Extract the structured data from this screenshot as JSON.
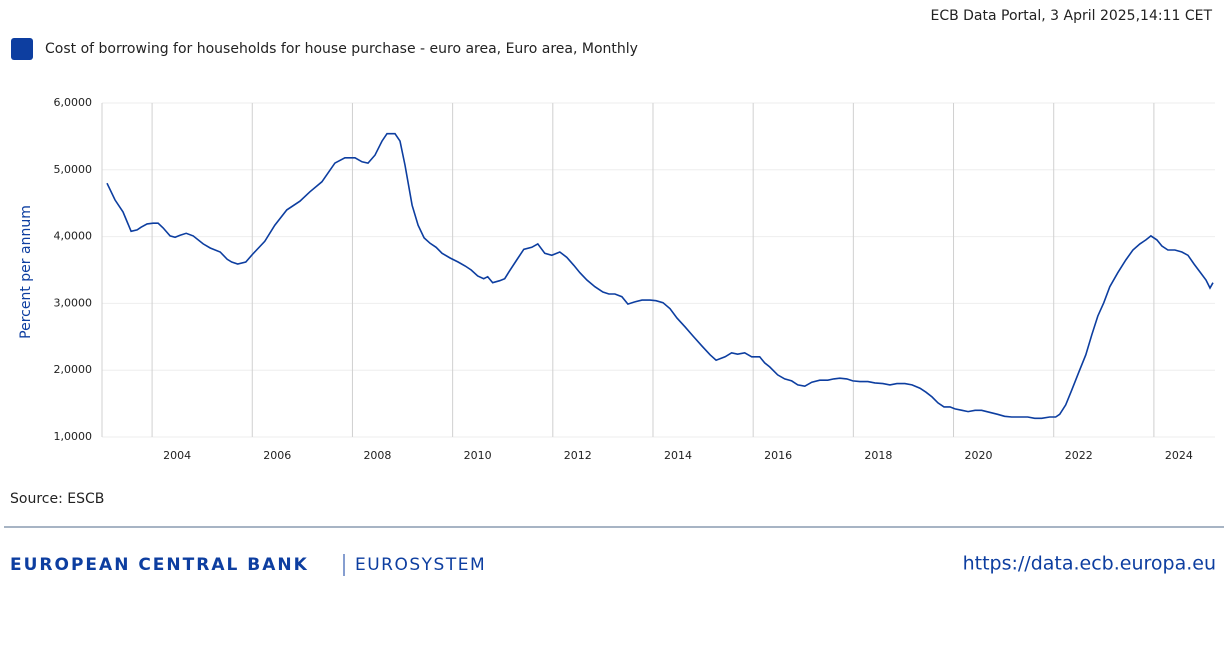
{
  "header": {
    "stamp": "ECB Data Portal, 3 April 2025,14:11 CET"
  },
  "chart_data": {
    "type": "line",
    "y_label": "Percent per annum",
    "series": [
      {
        "name": "Cost of borrowing for households for house purchase - euro area, Euro area, Monthly",
        "color": "#0d3ea0",
        "x": [
          2003.1,
          2003.26,
          2003.42,
          2003.58,
          2003.7,
          2003.78,
          2003.9,
          2004.02,
          2004.12,
          2004.22,
          2004.36,
          2004.46,
          2004.56,
          2004.68,
          2004.82,
          2005.02,
          2005.16,
          2005.36,
          2005.5,
          2005.59,
          2005.71,
          2005.87,
          2006.01,
          2006.25,
          2006.45,
          2006.69,
          2006.95,
          2007.15,
          2007.39,
          2007.65,
          2007.85,
          2008.05,
          2008.19,
          2008.31,
          2008.45,
          2008.59,
          2008.69,
          2008.85,
          2008.95,
          2009.05,
          2009.19,
          2009.31,
          2009.43,
          2009.55,
          2009.67,
          2009.79,
          2009.95,
          2010.11,
          2010.25,
          2010.37,
          2010.5,
          2010.62,
          2010.7,
          2010.8,
          2010.94,
          2011.04,
          2011.14,
          2011.28,
          2011.42,
          2011.58,
          2011.7,
          2011.84,
          2011.98,
          2012.14,
          2012.28,
          2012.42,
          2012.54,
          2012.68,
          2012.84,
          2013.0,
          2013.12,
          2013.24,
          2013.38,
          2013.5,
          2013.62,
          2013.78,
          2013.94,
          2014.06,
          2014.2,
          2014.34,
          2014.48,
          2014.64,
          2014.8,
          2014.98,
          2015.14,
          2015.26,
          2015.44,
          2015.57,
          2015.69,
          2015.83,
          2015.97,
          2016.13,
          2016.23,
          2016.33,
          2016.49,
          2016.63,
          2016.77,
          2016.89,
          2017.03,
          2017.17,
          2017.33,
          2017.49,
          2017.61,
          2017.73,
          2017.87,
          2017.99,
          2018.13,
          2018.29,
          2018.43,
          2018.59,
          2018.73,
          2018.87,
          2019.03,
          2019.17,
          2019.33,
          2019.45,
          2019.57,
          2019.69,
          2019.81,
          2019.93,
          2020.03,
          2020.17,
          2020.29,
          2020.43,
          2020.56,
          2020.72,
          2020.88,
          2021.02,
          2021.16,
          2021.32,
          2021.48,
          2021.62,
          2021.76,
          2021.92,
          2022.04,
          2022.12,
          2022.24,
          2022.36,
          2022.5,
          2022.64,
          2022.76,
          2022.88,
          2023.0,
          2023.12,
          2023.28,
          2023.44,
          2023.58,
          2023.72,
          2023.84,
          2023.94,
          2024.06,
          2024.16,
          2024.28,
          2024.42,
          2024.56,
          2024.68,
          2024.8,
          2024.92,
          2025.04,
          2025.12,
          2025.18
        ],
        "values": [
          4.8,
          4.55,
          4.37,
          4.08,
          4.1,
          4.14,
          4.19,
          4.2,
          4.2,
          4.13,
          4.01,
          3.99,
          4.02,
          4.05,
          4.01,
          3.89,
          3.83,
          3.77,
          3.66,
          3.62,
          3.59,
          3.62,
          3.74,
          3.93,
          4.17,
          4.4,
          4.53,
          4.67,
          4.82,
          5.1,
          5.18,
          5.18,
          5.12,
          5.1,
          5.22,
          5.43,
          5.54,
          5.54,
          5.43,
          5.07,
          4.47,
          4.17,
          3.98,
          3.9,
          3.84,
          3.75,
          3.68,
          3.62,
          3.56,
          3.5,
          3.41,
          3.37,
          3.4,
          3.31,
          3.34,
          3.37,
          3.49,
          3.65,
          3.81,
          3.84,
          3.89,
          3.75,
          3.72,
          3.77,
          3.69,
          3.57,
          3.46,
          3.35,
          3.25,
          3.17,
          3.14,
          3.14,
          3.1,
          2.99,
          3.02,
          3.05,
          3.05,
          3.04,
          3.01,
          2.92,
          2.78,
          2.65,
          2.51,
          2.36,
          2.23,
          2.15,
          2.2,
          2.26,
          2.24,
          2.26,
          2.2,
          2.2,
          2.11,
          2.05,
          1.93,
          1.87,
          1.84,
          1.78,
          1.76,
          1.82,
          1.85,
          1.85,
          1.87,
          1.88,
          1.87,
          1.84,
          1.83,
          1.83,
          1.81,
          1.8,
          1.78,
          1.8,
          1.8,
          1.78,
          1.73,
          1.67,
          1.6,
          1.51,
          1.45,
          1.45,
          1.42,
          1.4,
          1.38,
          1.4,
          1.4,
          1.37,
          1.34,
          1.31,
          1.3,
          1.3,
          1.3,
          1.28,
          1.28,
          1.3,
          1.3,
          1.34,
          1.48,
          1.7,
          1.97,
          2.23,
          2.53,
          2.81,
          3.01,
          3.25,
          3.46,
          3.65,
          3.8,
          3.89,
          3.95,
          4.01,
          3.95,
          3.86,
          3.8,
          3.8,
          3.77,
          3.72,
          3.59,
          3.47,
          3.35,
          3.23,
          3.31
        ]
      }
    ],
    "xlim": [
      2003,
      2025.22
    ],
    "xticks": [
      2004,
      2006,
      2008,
      2010,
      2012,
      2014,
      2016,
      2018,
      2020,
      2022,
      2024
    ],
    "ylim": [
      1,
      6
    ],
    "yticks": [
      {
        "value": 1,
        "label": "1,0000"
      },
      {
        "value": 2,
        "label": "2,0000"
      },
      {
        "value": 3,
        "label": "3,0000"
      },
      {
        "value": 4,
        "label": "4,0000"
      },
      {
        "value": 5,
        "label": "5,0000"
      },
      {
        "value": 6,
        "label": "6,0000"
      }
    ],
    "grid": true,
    "source": "Source: ESCB"
  },
  "footer": {
    "bank": "EUROPEAN CENTRAL BANK",
    "system": "EUROSYSTEM",
    "url": "https://data.ecb.europa.eu"
  }
}
